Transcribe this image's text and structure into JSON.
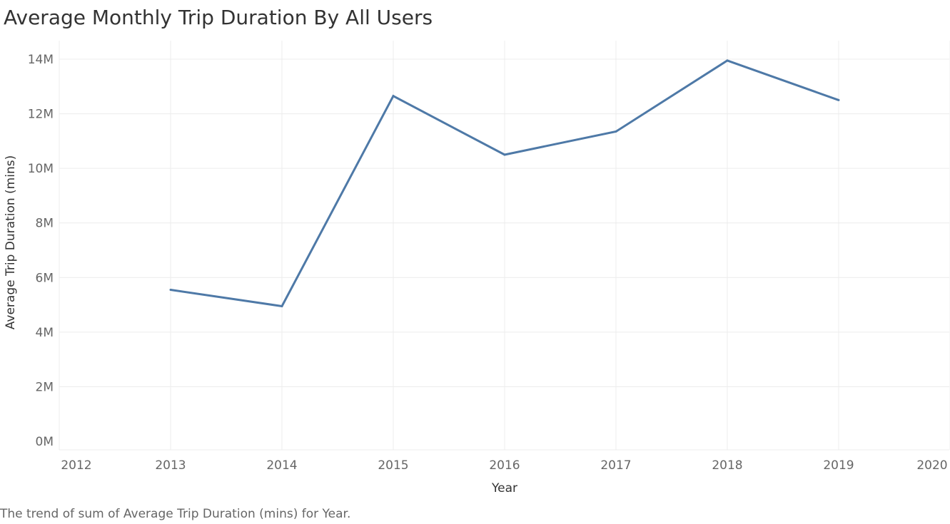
{
  "title": "Average Monthly Trip Duration By All Users",
  "caption": "The trend of sum of Average Trip Duration (mins) for Year.",
  "colors": {
    "line": "#4e79a7",
    "grid": "#ececec",
    "tick": "#666666",
    "axis_title": "#333333"
  },
  "chart_data": {
    "type": "line",
    "title": "Average Monthly Trip Duration By All Users",
    "xlabel": "Year",
    "ylabel": "Average Trip Duration (mins)",
    "x": [
      2013,
      2014,
      2015,
      2016,
      2017,
      2018,
      2019
    ],
    "values": [
      5550000,
      4950000,
      12650000,
      10500000,
      11350000,
      13950000,
      12500000
    ],
    "xlim": [
      2012,
      2020
    ],
    "ylim": [
      0,
      14000000
    ],
    "x_ticks": [
      2012,
      2013,
      2014,
      2015,
      2016,
      2017,
      2018,
      2019,
      2020
    ],
    "x_tick_labels": [
      "2012",
      "2013",
      "2014",
      "2015",
      "2016",
      "2017",
      "2018",
      "2019",
      "2020"
    ],
    "y_ticks": [
      0,
      2000000,
      4000000,
      6000000,
      8000000,
      10000000,
      12000000,
      14000000
    ],
    "y_tick_labels": [
      "0M",
      "2M",
      "4M",
      "6M",
      "8M",
      "10M",
      "12M",
      "14M"
    ],
    "grid": true,
    "legend": "none"
  }
}
